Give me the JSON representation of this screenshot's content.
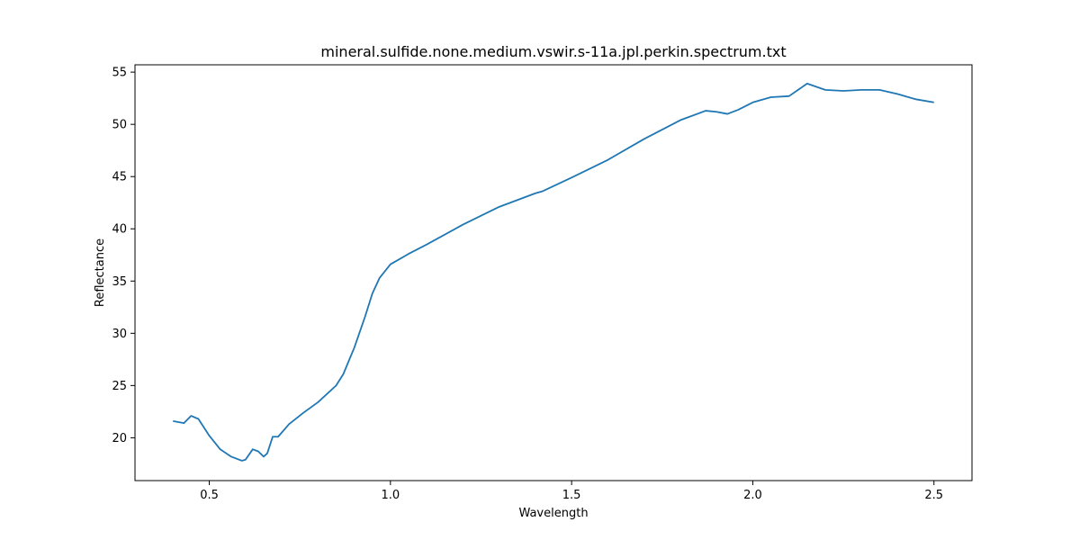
{
  "chart_data": {
    "type": "line",
    "title": "mineral.sulfide.none.medium.vswir.s-11a.jpl.perkin.spectrum.txt",
    "xlabel": "Wavelength",
    "ylabel": "Reflectance",
    "xlim": [
      0.295,
      2.605
    ],
    "ylim": [
      15.9,
      55.7
    ],
    "grid": false,
    "legend": "none",
    "xticks": [
      0.5,
      1.0,
      1.5,
      2.0,
      2.5
    ],
    "xtick_labels": [
      "0.5",
      "1.0",
      "1.5",
      "2.0",
      "2.5"
    ],
    "yticks": [
      20,
      25,
      30,
      35,
      40,
      45,
      50,
      55
    ],
    "ytick_labels": [
      "20",
      "25",
      "30",
      "35",
      "40",
      "45",
      "50",
      "55"
    ],
    "series": [
      {
        "color": "#1f77b4",
        "x": [
          0.4,
          0.43,
          0.45,
          0.47,
          0.5,
          0.53,
          0.56,
          0.59,
          0.6,
          0.62,
          0.635,
          0.65,
          0.66,
          0.675,
          0.69,
          0.72,
          0.76,
          0.8,
          0.85,
          0.87,
          0.9,
          0.93,
          0.95,
          0.97,
          1.0,
          1.05,
          1.1,
          1.2,
          1.3,
          1.4,
          1.42,
          1.5,
          1.6,
          1.7,
          1.8,
          1.87,
          1.9,
          1.93,
          1.96,
          2.0,
          2.05,
          2.1,
          2.15,
          2.2,
          2.25,
          2.3,
          2.35,
          2.4,
          2.45,
          2.5
        ],
        "y": [
          21.6,
          21.4,
          22.1,
          21.8,
          20.2,
          18.9,
          18.2,
          17.8,
          17.9,
          18.9,
          18.7,
          18.2,
          18.5,
          20.1,
          20.1,
          21.3,
          22.4,
          23.4,
          25.0,
          26.1,
          28.6,
          31.6,
          33.8,
          35.3,
          36.6,
          37.6,
          38.5,
          40.4,
          42.1,
          43.4,
          43.6,
          44.9,
          46.6,
          48.6,
          50.4,
          51.3,
          51.2,
          51.0,
          51.4,
          52.1,
          52.6,
          52.7,
          53.9,
          53.3,
          53.2,
          53.3,
          53.3,
          52.9,
          52.4,
          52.1
        ]
      }
    ]
  }
}
